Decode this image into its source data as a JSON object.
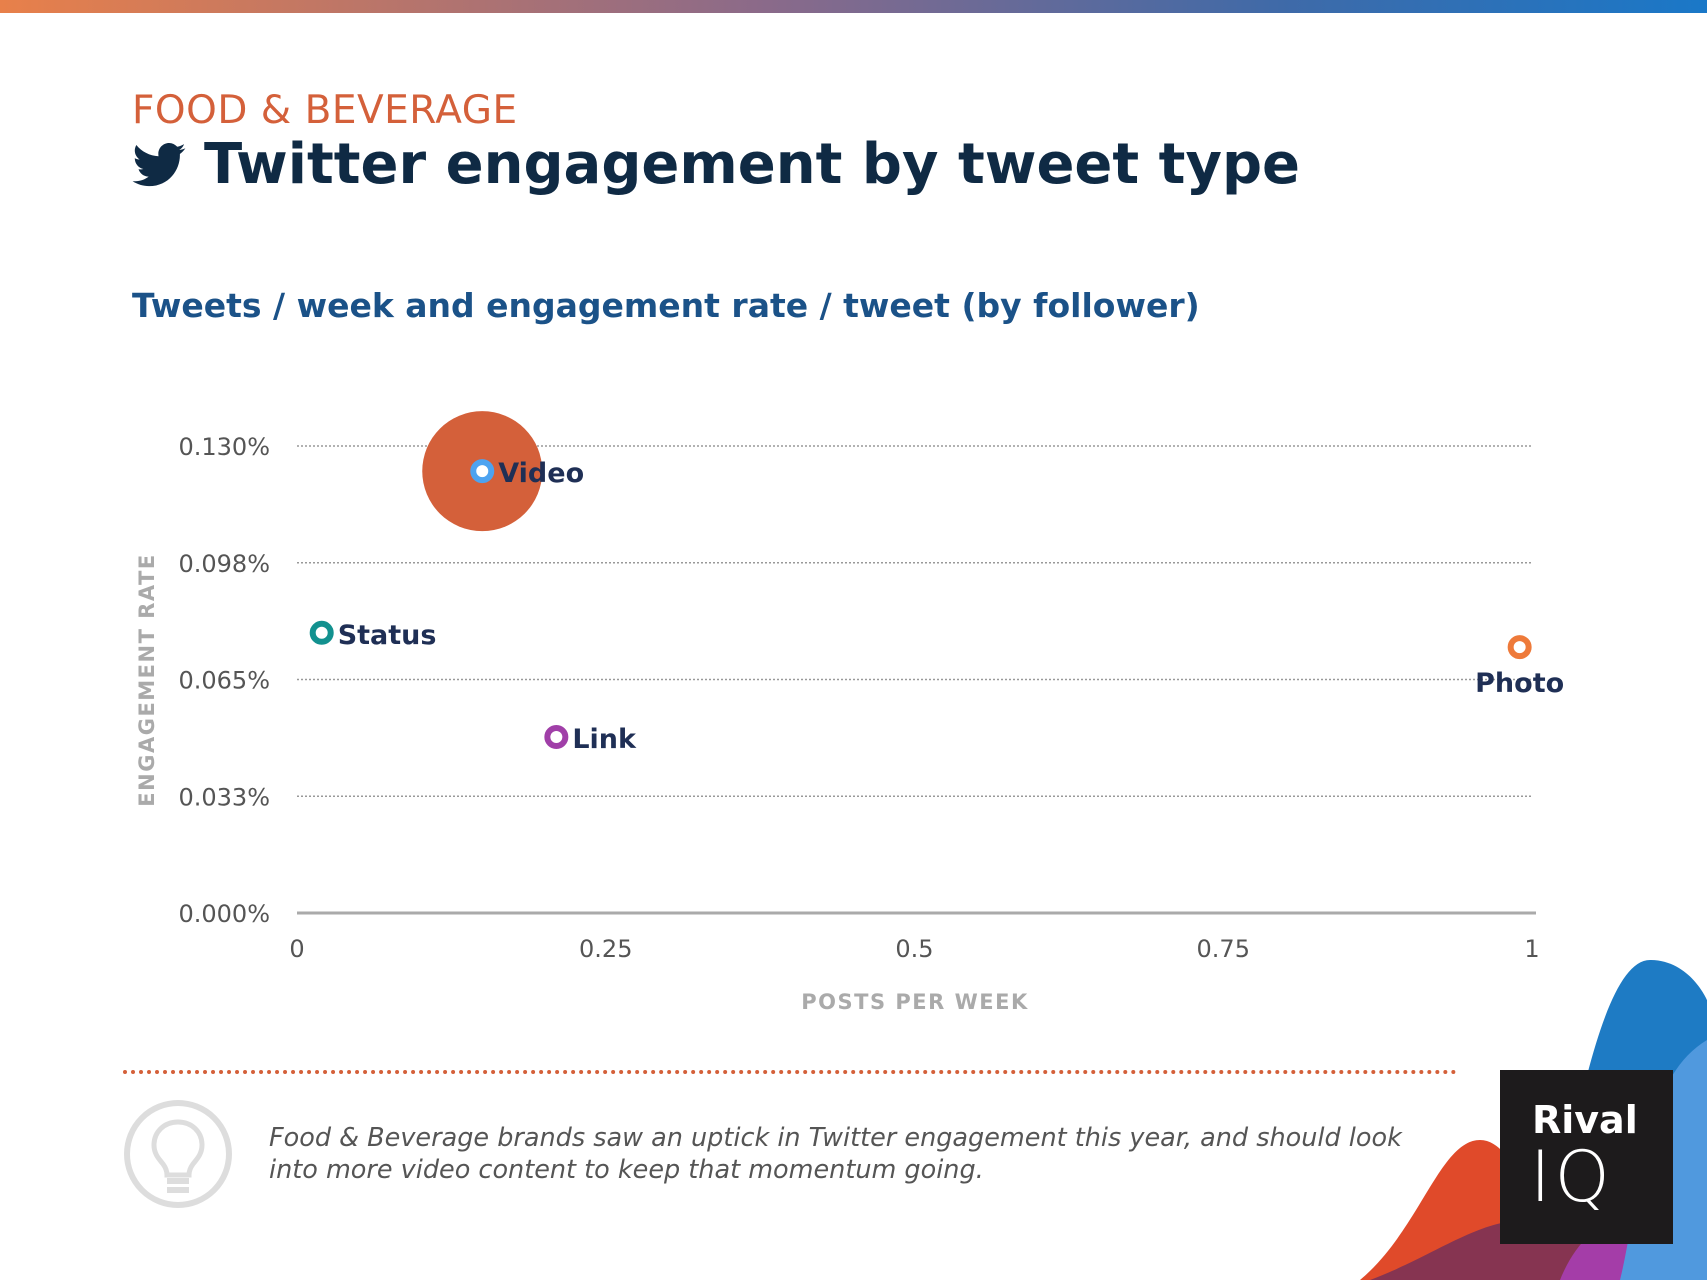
{
  "header": {
    "kicker": "FOOD & BEVERAGE",
    "title": "Twitter engagement by tweet type",
    "subtitle": "Tweets / week and engagement rate / tweet (by follower)"
  },
  "chart_data": {
    "type": "scatter",
    "xlabel": "POSTS PER WEEK",
    "ylabel": "ENGAGEMENT RATE",
    "xlim": [
      0,
      1
    ],
    "ylim": [
      0,
      0.13
    ],
    "x_ticks": [
      0,
      0.25,
      0.5,
      0.75,
      1
    ],
    "x_tick_labels": [
      "0",
      "0.25",
      "0.5",
      "0.75",
      "1"
    ],
    "y_ticks": [
      0,
      0.0325,
      0.065,
      0.0975,
      0.13
    ],
    "y_tick_labels": [
      "0.000%",
      "0.033%",
      "0.065%",
      "0.098%",
      "0.130%"
    ],
    "grid": true,
    "points": [
      {
        "name": "Video",
        "x": 0.15,
        "y": 0.123,
        "color": "#4da3f0",
        "highlight": true
      },
      {
        "name": "Status",
        "x": 0.02,
        "y": 0.078,
        "color": "#12918f"
      },
      {
        "name": "Link",
        "x": 0.21,
        "y": 0.049,
        "color": "#a03fa8"
      },
      {
        "name": "Photo",
        "x": 0.99,
        "y": 0.074,
        "color": "#ee7a3a"
      }
    ],
    "highlight_color": "#d4603a"
  },
  "footer": {
    "note": "Food & Beverage brands saw an uptick in Twitter engagement this year, and should look into more video content to keep that momentum going.",
    "logo_text": "Rival IQ"
  }
}
